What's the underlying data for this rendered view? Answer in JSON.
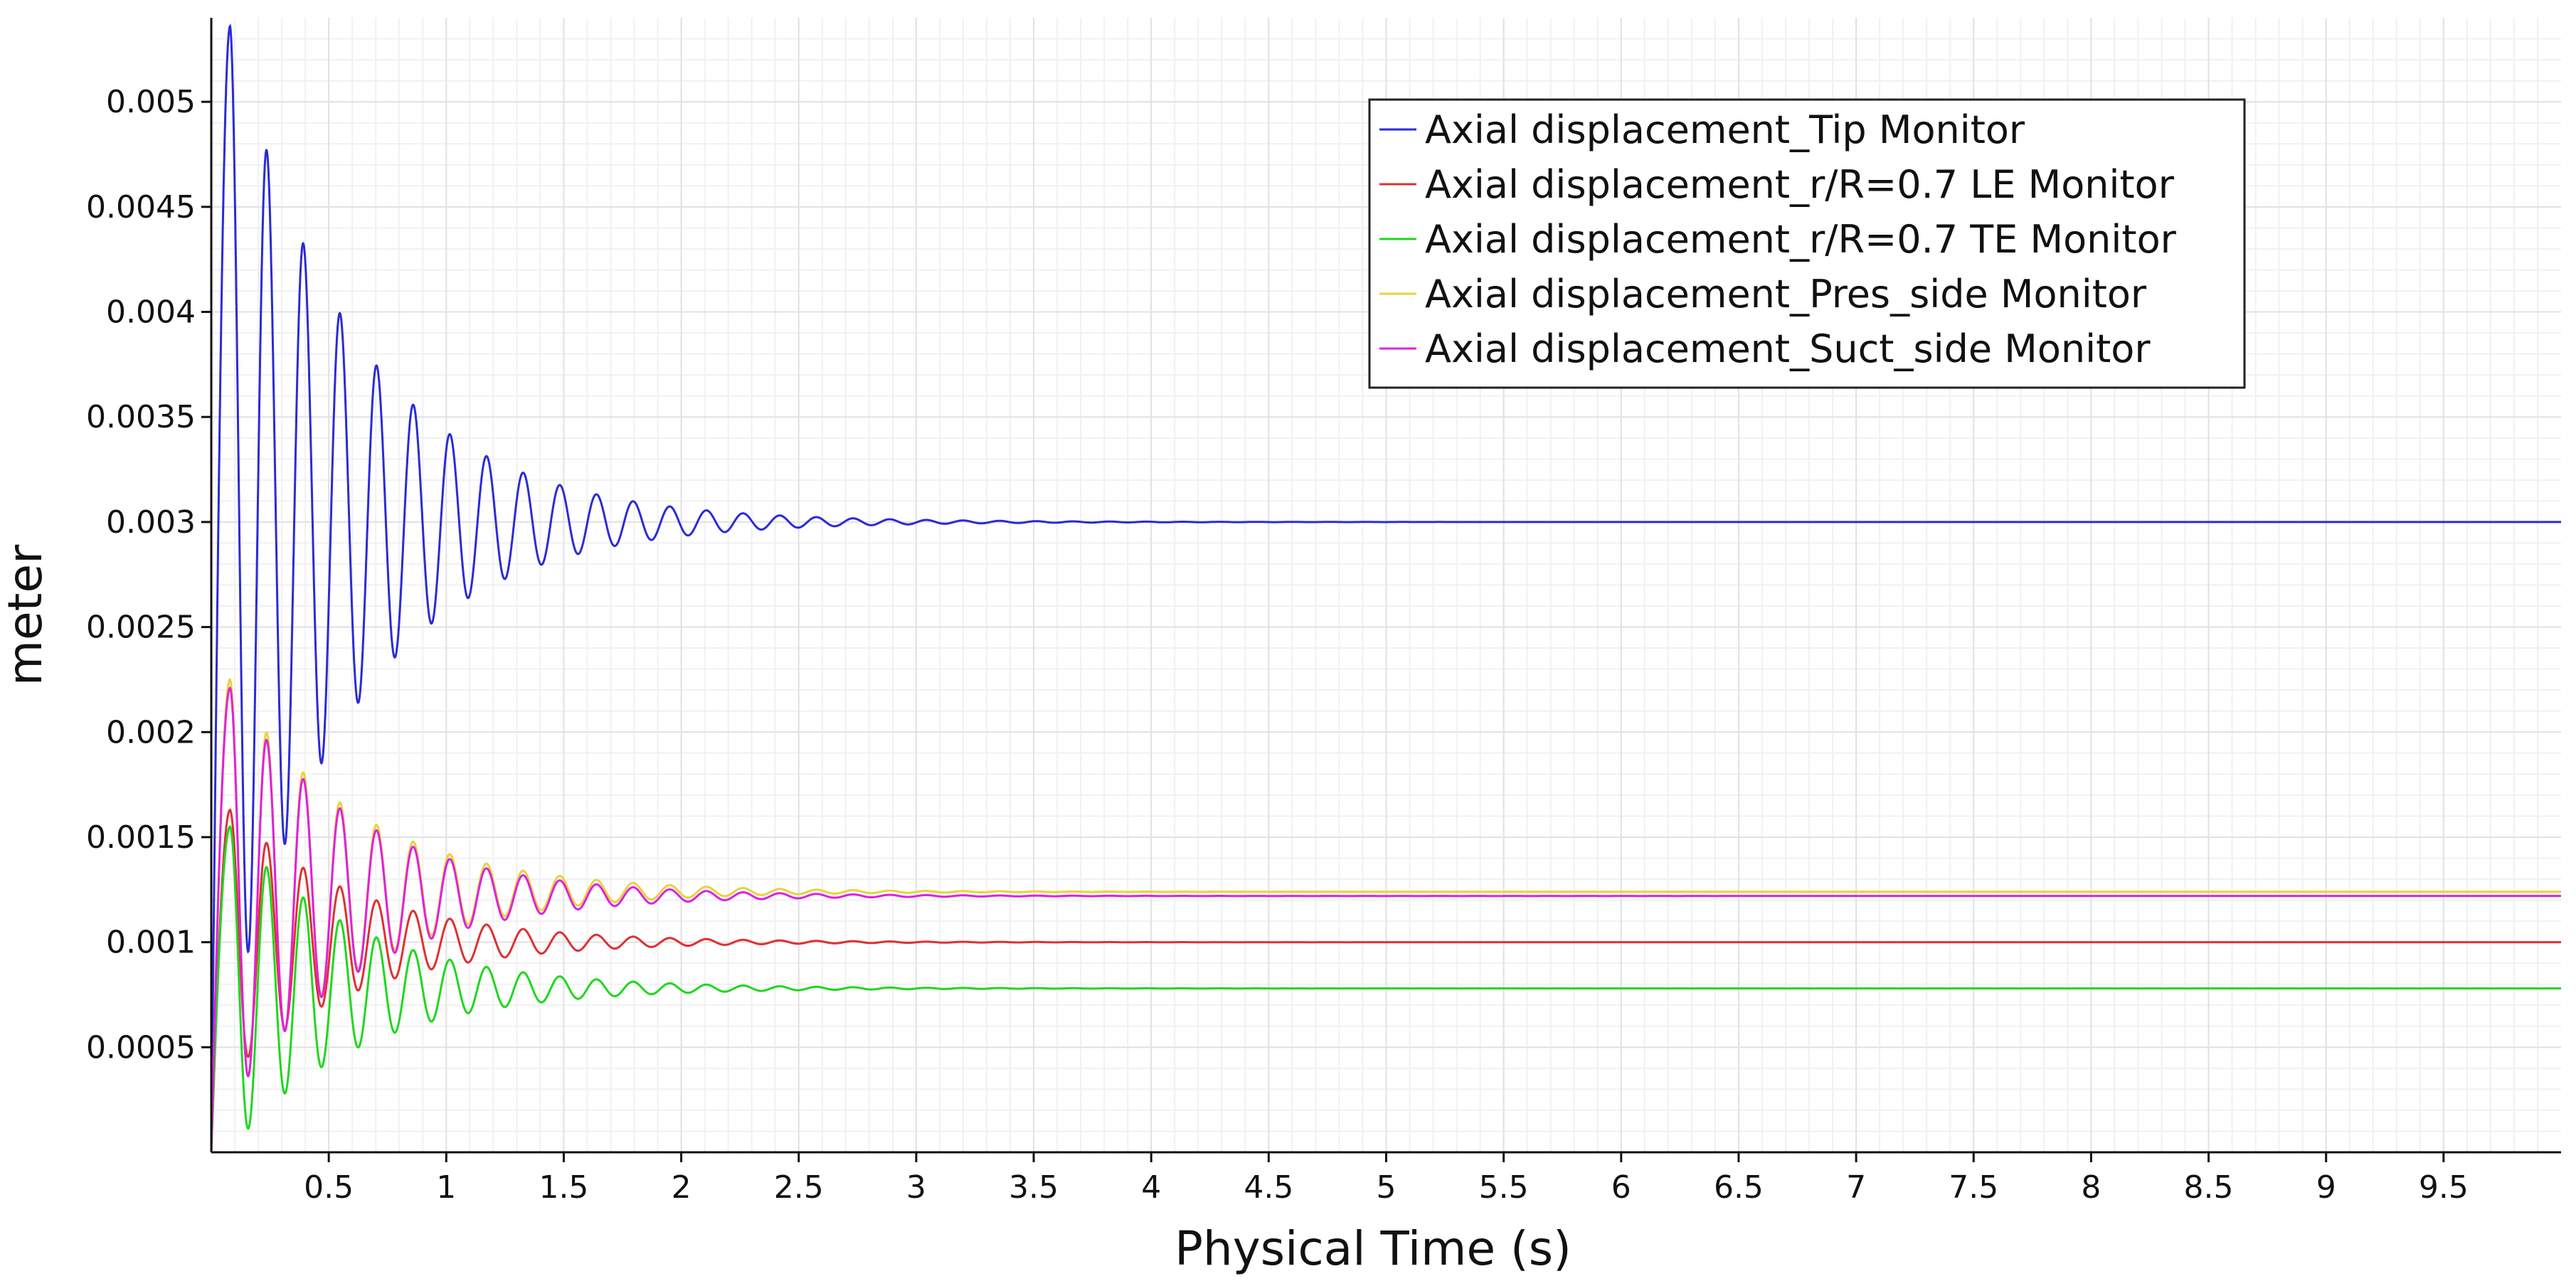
{
  "chart_data": {
    "type": "line",
    "title": "",
    "xlabel": "Physical Time (s)",
    "ylabel": "meter",
    "xlim": [
      0,
      10
    ],
    "ylim": [
      0,
      0.0054
    ],
    "grid": true,
    "legend_position": "top-right",
    "x_ticks": [
      "0.5",
      "1",
      "1.5",
      "2",
      "2.5",
      "3",
      "3.5",
      "4",
      "4.5",
      "5",
      "5.5",
      "6",
      "6.5",
      "7",
      "7.5",
      "8",
      "8.5",
      "9",
      "9.5"
    ],
    "x_tick_values": [
      0.5,
      1,
      1.5,
      2,
      2.5,
      3,
      3.5,
      4,
      4.5,
      5,
      5.5,
      6,
      6.5,
      7,
      7.5,
      8,
      8.5,
      9,
      9.5
    ],
    "y_ticks": [
      "0.0005",
      "0.001",
      "0.0015",
      "0.002",
      "0.0025",
      "0.003",
      "0.0035",
      "0.004",
      "0.0045",
      "0.005"
    ],
    "y_tick_values": [
      0.0005,
      0.001,
      0.0015,
      0.002,
      0.0025,
      0.003,
      0.0035,
      0.004,
      0.0045,
      0.005
    ],
    "series": [
      {
        "name": "Axial displacement_Tip Monitor",
        "color": "#2b2bd6",
        "steady": 0.003,
        "amplitude": 0.00236,
        "decay": 1.85,
        "period": 0.156,
        "peak_time": 0.08
      },
      {
        "name": "Axial displacement_r/R=0.7 LE Monitor",
        "color": "#e0302f",
        "steady": 0.001,
        "amplitude": 0.00063,
        "decay": 1.85,
        "period": 0.156,
        "peak_time": 0.08
      },
      {
        "name": "Axial displacement_r/R=0.7 TE Monitor",
        "color": "#1ed81e",
        "steady": 0.00078,
        "amplitude": 0.00077,
        "decay": 1.85,
        "period": 0.156,
        "peak_time": 0.08
      },
      {
        "name": "Axial displacement_Pres_side Monitor",
        "color": "#e8d33a",
        "steady": 0.00124,
        "amplitude": 0.00101,
        "decay": 1.85,
        "period": 0.156,
        "peak_time": 0.08
      },
      {
        "name": "Axial displacement_Suct_side Monitor",
        "color": "#e020e0",
        "steady": 0.00122,
        "amplitude": 0.00099,
        "decay": 1.85,
        "period": 0.156,
        "peak_time": 0.08
      }
    ]
  }
}
